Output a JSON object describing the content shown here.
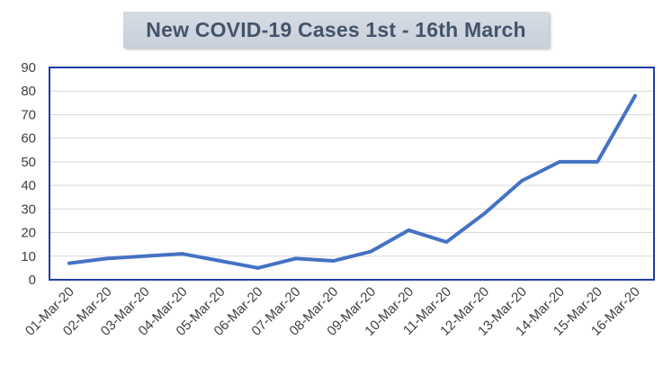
{
  "chart_data": {
    "type": "line",
    "title": "New COVID-19 Cases 1st - 16th March",
    "xlabel": "",
    "ylabel": "",
    "categories": [
      "01-Mar-20",
      "02-Mar-20",
      "03-Mar-20",
      "04-Mar-20",
      "05-Mar-20",
      "06-Mar-20",
      "07-Mar-20",
      "08-Mar-20",
      "09-Mar-20",
      "10-Mar-20",
      "11-Mar-20",
      "12-Mar-20",
      "13-Mar-20",
      "14-Mar-20",
      "15-Mar-20",
      "16-Mar-20"
    ],
    "series": [
      {
        "values": [
          7,
          9,
          10,
          11,
          8,
          5,
          9,
          8,
          12,
          21,
          16,
          28,
          42,
          50,
          50,
          78
        ]
      }
    ],
    "ylim": [
      0,
      90
    ],
    "yticks": [
      0,
      10,
      20,
      30,
      40,
      50,
      60,
      70,
      80,
      90
    ],
    "grid": true,
    "legend": "none",
    "colors": {
      "line": "#4472c4",
      "plot_border": "#1f3ea6",
      "grid": "#d9d9d9",
      "title_text": "#44546a",
      "title_bg": "#d0d6df"
    }
  }
}
